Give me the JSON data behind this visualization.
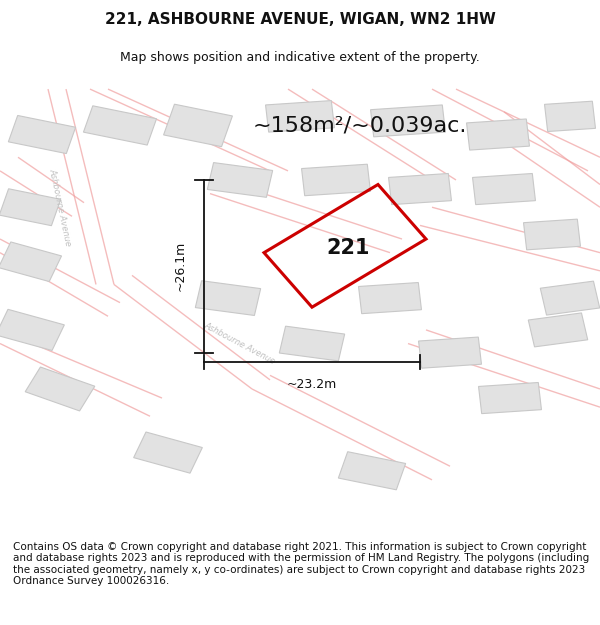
{
  "title": "221, ASHBOURNE AVENUE, WIGAN, WN2 1HW",
  "subtitle": "Map shows position and indicative extent of the property.",
  "area_text": "~158m²/~0.039ac.",
  "width_label": "~23.2m",
  "height_label": "~26.1m",
  "property_number": "221",
  "map_bg": "#f7f7f7",
  "building_fill": "#e2e2e2",
  "building_edge": "#c8c8c8",
  "road_line_color": "#f0a0a0",
  "property_color": "#cc0000",
  "dim_color": "#111111",
  "street_label_color": "#c0c0c0",
  "footer_text": "Contains OS data © Crown copyright and database right 2021. This information is subject to Crown copyright and database rights 2023 and is reproduced with the permission of HM Land Registry. The polygons (including the associated geometry, namely x, y co-ordinates) are subject to Crown copyright and database rights 2023 Ordnance Survey 100026316.",
  "title_fontsize": 11,
  "subtitle_fontsize": 9,
  "area_fontsize": 16,
  "footer_fontsize": 7.5
}
